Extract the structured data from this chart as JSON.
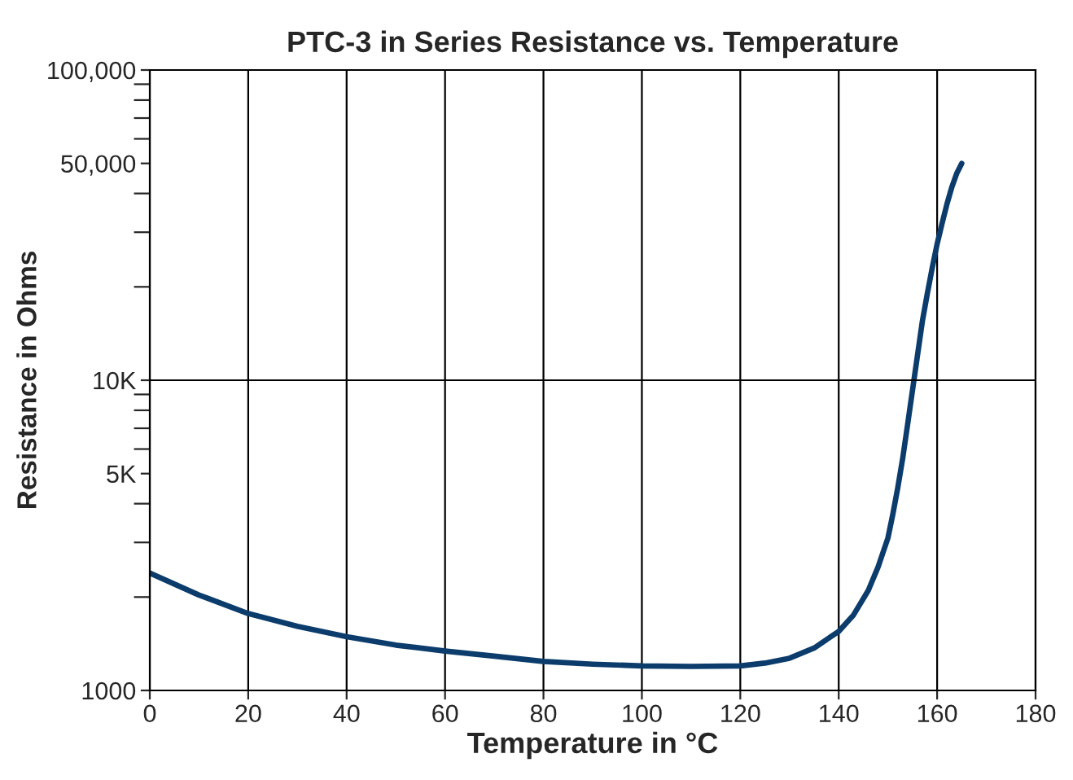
{
  "chart_data": {
    "type": "line",
    "title": "PTC-3 in Series Resistance vs. Temperature",
    "xlabel": "Temperature in °C",
    "ylabel": "Resistance in Ohms",
    "x": [
      0,
      10,
      20,
      30,
      40,
      50,
      60,
      70,
      80,
      90,
      100,
      110,
      120,
      125,
      130,
      135,
      140,
      143,
      146,
      148,
      150,
      151,
      152,
      153,
      154,
      155,
      156,
      157,
      158,
      159,
      160,
      161,
      162,
      163,
      164,
      165
    ],
    "series": [
      {
        "color": "#0b3c6b",
        "values": [
          2390,
          2030,
          1770,
          1610,
          1490,
          1400,
          1340,
          1290,
          1240,
          1215,
          1200,
          1195,
          1200,
          1225,
          1270,
          1370,
          1550,
          1750,
          2100,
          2500,
          3100,
          3700,
          4500,
          5600,
          7200,
          9300,
          12000,
          15500,
          19000,
          23000,
          27500,
          32000,
          37000,
          42000,
          46500,
          50000
        ]
      }
    ],
    "log": "y",
    "xlim": [
      0,
      180
    ],
    "xticks": [
      0,
      20,
      40,
      60,
      80,
      100,
      120,
      140,
      160,
      180
    ],
    "ylim": [
      1000,
      100000
    ],
    "yticks": [
      {
        "value": 1000,
        "label": "1000"
      },
      {
        "value": 2000,
        "label": null
      },
      {
        "value": 3000,
        "label": null
      },
      {
        "value": 4000,
        "label": null
      },
      {
        "value": 5000,
        "label": "5K"
      },
      {
        "value": 6000,
        "label": null
      },
      {
        "value": 7000,
        "label": null
      },
      {
        "value": 8000,
        "label": null
      },
      {
        "value": 9000,
        "label": null
      },
      {
        "value": 10000,
        "label": "10K"
      },
      {
        "value": 20000,
        "label": null
      },
      {
        "value": 30000,
        "label": null
      },
      {
        "value": 40000,
        "label": null
      },
      {
        "value": 50000,
        "label": "50,000"
      },
      {
        "value": 60000,
        "label": null
      },
      {
        "value": 70000,
        "label": null
      },
      {
        "value": 80000,
        "label": null
      },
      {
        "value": 90000,
        "label": null
      },
      {
        "value": 100000,
        "label": "100,000"
      }
    ],
    "grid": "x",
    "ref_lines": [
      {
        "axis": "y",
        "value": 10000,
        "color": "#000000"
      }
    ],
    "marker": "none",
    "line_style": "solid"
  }
}
